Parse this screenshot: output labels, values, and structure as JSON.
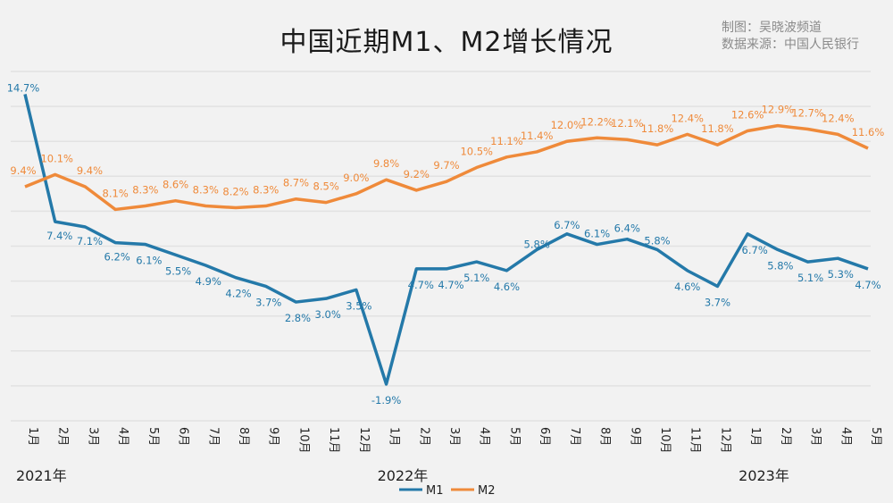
{
  "title": "中国近期M1、M2增长情况",
  "credits": [
    "制图：吴晓波频道",
    "数据来源：中国人民银行"
  ],
  "colors": {
    "M1": "#2479a9",
    "M2": "#ef8a3a",
    "grid": "#e2e2e2",
    "background": "#f2f2f2"
  },
  "chart_data": {
    "type": "line",
    "title": "中国近期M1、M2增长情况",
    "categories": [
      "1月",
      "2月",
      "3月",
      "4月",
      "5月",
      "6月",
      "7月",
      "8月",
      "9月",
      "10月",
      "11月",
      "12月",
      "1月",
      "2月",
      "3月",
      "4月",
      "5月",
      "6月",
      "7月",
      "8月",
      "9月",
      "10月",
      "11月",
      "12月",
      "1月",
      "2月",
      "3月",
      "4月",
      "5月"
    ],
    "year_labels": [
      {
        "label": "2021年",
        "index": 0
      },
      {
        "label": "2022年",
        "index": 12
      },
      {
        "label": "2023年",
        "index": 24
      }
    ],
    "series": [
      {
        "name": "M1",
        "values": [
          14.7,
          7.4,
          7.1,
          6.2,
          6.1,
          5.5,
          4.9,
          4.2,
          3.7,
          2.8,
          3.0,
          3.5,
          -1.9,
          4.7,
          4.7,
          5.1,
          4.6,
          5.8,
          6.7,
          6.1,
          6.4,
          5.8,
          4.6,
          3.7,
          6.7,
          5.8,
          5.1,
          5.3,
          4.7
        ]
      },
      {
        "name": "M2",
        "values": [
          9.4,
          10.1,
          9.4,
          8.1,
          8.3,
          8.6,
          8.3,
          8.2,
          8.3,
          8.7,
          8.5,
          9.0,
          9.8,
          9.2,
          9.7,
          10.5,
          11.1,
          11.4,
          12.0,
          12.2,
          12.1,
          11.8,
          12.4,
          11.8,
          12.6,
          12.9,
          12.7,
          12.4,
          11.6
        ]
      }
    ],
    "value_suffix": "%",
    "ylim": [
      -4,
      16
    ],
    "grid_step": 2,
    "grid": true,
    "y_tick_labels": false,
    "legend_position": "bottom"
  }
}
